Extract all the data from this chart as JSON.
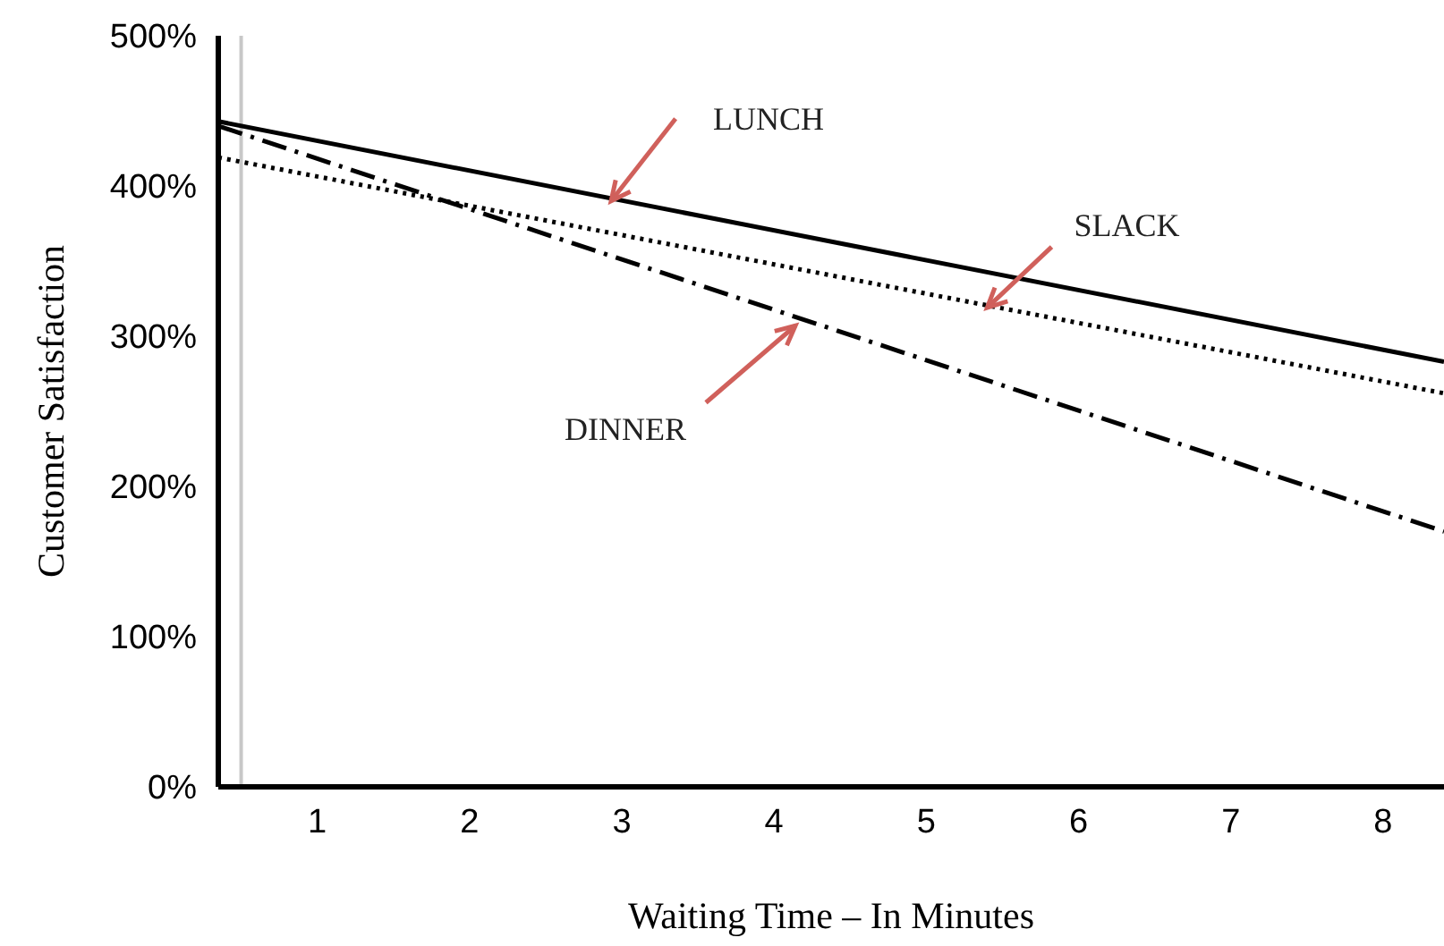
{
  "chart_data": {
    "type": "line",
    "xlabel": "Waiting Time – In Minutes",
    "ylabel": "Customer Satisfaction",
    "x": [
      0.35,
      8.4
    ],
    "series": [
      {
        "color": "#000000",
        "line_style": "solid",
        "values": [
          443,
          283
        ]
      },
      {
        "color": "#000000",
        "line_style": "dotted",
        "values": [
          419,
          262
        ]
      },
      {
        "color": "#000000",
        "line_style": "dashed",
        "values": [
          440,
          170
        ]
      }
    ],
    "xlim": [
      0.35,
      8.4
    ],
    "xticks": [
      1,
      2,
      3,
      4,
      5,
      6,
      7,
      8
    ],
    "ylim": [
      0,
      500
    ],
    "yticks": [
      {
        "value": 0,
        "label": "0%"
      },
      {
        "value": 100,
        "label": "100%"
      },
      {
        "value": 200,
        "label": "200%"
      },
      {
        "value": 300,
        "label": "300%"
      },
      {
        "value": 400,
        "label": "400%"
      },
      {
        "value": 500,
        "label": "500%"
      }
    ],
    "ref_lines": [
      {
        "axis": "x",
        "value": 0.5,
        "color": "#c8c8c8"
      }
    ],
    "annotations": [
      {
        "text": "LUNCH",
        "x": 2.93,
        "y": 390
      },
      {
        "text": "SLACK",
        "x": 5.4,
        "y": 319
      },
      {
        "text": "DINNER",
        "x": 4.14,
        "y": 307
      }
    ],
    "grid": false,
    "legend": false,
    "marker": "none"
  }
}
